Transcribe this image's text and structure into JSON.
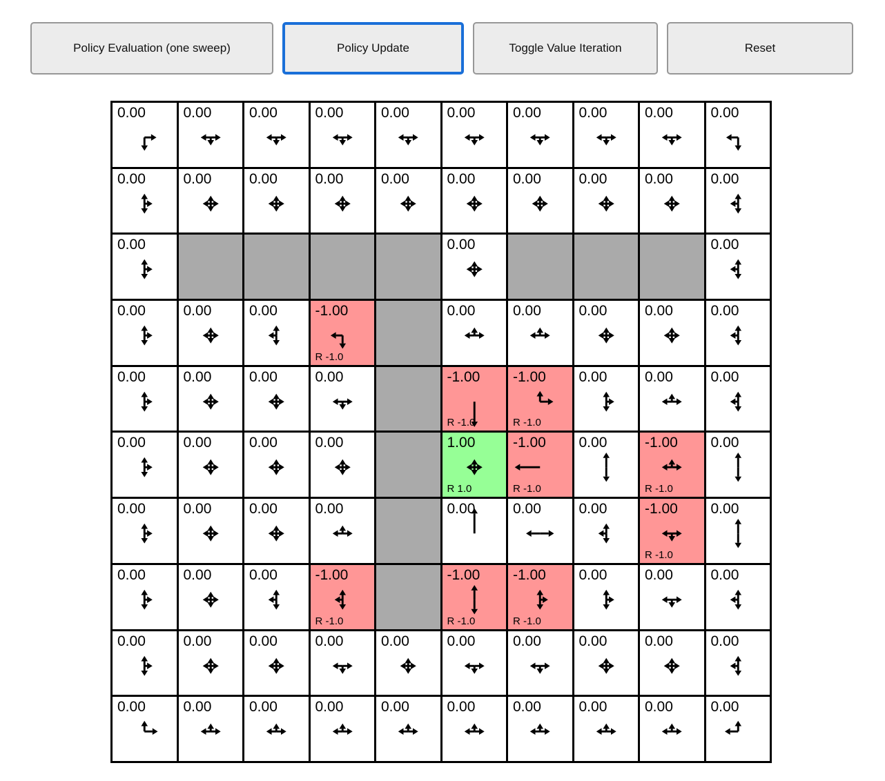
{
  "toolbar": {
    "buttons": [
      {
        "label": "Policy Evaluation (one sweep)"
      },
      {
        "label": "Policy Update"
      },
      {
        "label": "Toggle Value Iteration"
      },
      {
        "label": "Reset"
      }
    ],
    "active_index": 1,
    "active_border_color": "#1a6fd8"
  },
  "colors": {
    "cell": "#ffffff",
    "wall": "#aaaaaa",
    "negative": "#ff9696",
    "positive": "#96ff96",
    "grid_line": "#000000"
  },
  "grid": {
    "rows": 10,
    "cols": 10,
    "patterns": {
      "star": [
        [
          "u",
          4
        ],
        [
          "d",
          4
        ],
        [
          "l",
          4
        ],
        [
          "r",
          4
        ]
      ],
      "udr": [
        [
          "u",
          7
        ],
        [
          "d",
          7
        ],
        [
          "r",
          4
        ]
      ],
      "udl": [
        [
          "u",
          7
        ],
        [
          "d",
          7
        ],
        [
          "l",
          4
        ]
      ],
      "lrd": [
        [
          "l",
          7
        ],
        [
          "r",
          7
        ],
        [
          "d",
          4
        ]
      ],
      "lru": [
        [
          "l",
          7
        ],
        [
          "r",
          7
        ],
        [
          "u",
          4
        ]
      ],
      "rd": [
        [
          "r",
          10
        ],
        [
          "d",
          12
        ]
      ],
      "ld": [
        [
          "l",
          10
        ],
        [
          "d",
          12
        ]
      ],
      "ur": [
        [
          "u",
          8
        ],
        [
          "r",
          12
        ]
      ],
      "ul": [
        [
          "u",
          8
        ],
        [
          "l",
          12
        ]
      ],
      "dlong": [
        [
          "d",
          30
        ]
      ],
      "llong": [
        [
          "l",
          30
        ]
      ],
      "ulong": [
        [
          "u",
          30
        ]
      ],
      "udlong": [
        [
          "u",
          14
        ],
        [
          "d",
          14
        ]
      ],
      "lrlong": [
        [
          "l",
          13
        ],
        [
          "r",
          13
        ]
      ]
    },
    "cells": [
      [
        [
          "0.00",
          "rd",
          "w",
          ""
        ],
        [
          "0.00",
          "lrd",
          "w",
          ""
        ],
        [
          "0.00",
          "lrd",
          "w",
          ""
        ],
        [
          "0.00",
          "lrd",
          "w",
          ""
        ],
        [
          "0.00",
          "lrd",
          "w",
          ""
        ],
        [
          "0.00",
          "lrd",
          "w",
          ""
        ],
        [
          "0.00",
          "lrd",
          "w",
          ""
        ],
        [
          "0.00",
          "lrd",
          "w",
          ""
        ],
        [
          "0.00",
          "lrd",
          "w",
          ""
        ],
        [
          "0.00",
          "ld",
          "w",
          ""
        ]
      ],
      [
        [
          "0.00",
          "udr",
          "w",
          ""
        ],
        [
          "0.00",
          "star",
          "w",
          ""
        ],
        [
          "0.00",
          "star",
          "w",
          ""
        ],
        [
          "0.00",
          "star",
          "w",
          ""
        ],
        [
          "0.00",
          "star",
          "w",
          ""
        ],
        [
          "0.00",
          "star",
          "w",
          ""
        ],
        [
          "0.00",
          "star",
          "w",
          ""
        ],
        [
          "0.00",
          "star",
          "w",
          ""
        ],
        [
          "0.00",
          "star",
          "w",
          ""
        ],
        [
          "0.00",
          "udl",
          "w",
          ""
        ]
      ],
      [
        [
          "0.00",
          "udr",
          "w",
          ""
        ],
        [
          "",
          "",
          "g",
          ""
        ],
        [
          "",
          "",
          "g",
          ""
        ],
        [
          "",
          "",
          "g",
          ""
        ],
        [
          "",
          "",
          "g",
          ""
        ],
        [
          "0.00",
          "star",
          "w",
          ""
        ],
        [
          "",
          "",
          "g",
          ""
        ],
        [
          "",
          "",
          "g",
          ""
        ],
        [
          "",
          "",
          "g",
          ""
        ],
        [
          "0.00",
          "udl",
          "w",
          ""
        ]
      ],
      [
        [
          "0.00",
          "udr",
          "w",
          ""
        ],
        [
          "0.00",
          "star",
          "w",
          ""
        ],
        [
          "0.00",
          "udl",
          "w",
          ""
        ],
        [
          "-1.00",
          "ld",
          "r",
          "R -1.0"
        ],
        [
          "",
          "",
          "g",
          ""
        ],
        [
          "0.00",
          "lru",
          "w",
          ""
        ],
        [
          "0.00",
          "lru",
          "w",
          ""
        ],
        [
          "0.00",
          "star",
          "w",
          ""
        ],
        [
          "0.00",
          "star",
          "w",
          ""
        ],
        [
          "0.00",
          "udl",
          "w",
          ""
        ]
      ],
      [
        [
          "0.00",
          "udr",
          "w",
          ""
        ],
        [
          "0.00",
          "star",
          "w",
          ""
        ],
        [
          "0.00",
          "star",
          "w",
          ""
        ],
        [
          "0.00",
          "lrd",
          "w",
          ""
        ],
        [
          "",
          "",
          "g",
          ""
        ],
        [
          "-1.00",
          "dlong",
          "r",
          "R -1.0"
        ],
        [
          "-1.00",
          "ur",
          "r",
          "R -1.0"
        ],
        [
          "0.00",
          "udr",
          "w",
          ""
        ],
        [
          "0.00",
          "lru",
          "w",
          ""
        ],
        [
          "0.00",
          "udl",
          "w",
          ""
        ]
      ],
      [
        [
          "0.00",
          "udr",
          "w",
          ""
        ],
        [
          "0.00",
          "star",
          "w",
          ""
        ],
        [
          "0.00",
          "star",
          "w",
          ""
        ],
        [
          "0.00",
          "star",
          "w",
          ""
        ],
        [
          "",
          "",
          "g",
          ""
        ],
        [
          "1.00",
          "star",
          "p",
          "R 1.0"
        ],
        [
          "-1.00",
          "llong",
          "r",
          "R -1.0"
        ],
        [
          "0.00",
          "udlong",
          "w",
          ""
        ],
        [
          "-1.00",
          "lru",
          "r",
          "R -1.0"
        ],
        [
          "0.00",
          "udlong",
          "w",
          ""
        ]
      ],
      [
        [
          "0.00",
          "udr",
          "w",
          ""
        ],
        [
          "0.00",
          "star",
          "w",
          ""
        ],
        [
          "0.00",
          "star",
          "w",
          ""
        ],
        [
          "0.00",
          "lru",
          "w",
          ""
        ],
        [
          "",
          "",
          "g",
          ""
        ],
        [
          "0.00",
          "ulong",
          "w",
          ""
        ],
        [
          "0.00",
          "lrlong",
          "w",
          ""
        ],
        [
          "0.00",
          "udl",
          "w",
          ""
        ],
        [
          "-1.00",
          "lrd",
          "r",
          "R -1.0"
        ],
        [
          "0.00",
          "udlong",
          "w",
          ""
        ]
      ],
      [
        [
          "0.00",
          "udr",
          "w",
          ""
        ],
        [
          "0.00",
          "star",
          "w",
          ""
        ],
        [
          "0.00",
          "udl",
          "w",
          ""
        ],
        [
          "-1.00",
          "udl",
          "r",
          "R -1.0"
        ],
        [
          "",
          "",
          "g",
          ""
        ],
        [
          "-1.00",
          "udlong",
          "r",
          "R -1.0"
        ],
        [
          "-1.00",
          "udr",
          "r",
          "R -1.0"
        ],
        [
          "0.00",
          "udr",
          "w",
          ""
        ],
        [
          "0.00",
          "lrd",
          "w",
          ""
        ],
        [
          "0.00",
          "udl",
          "w",
          ""
        ]
      ],
      [
        [
          "0.00",
          "udr",
          "w",
          ""
        ],
        [
          "0.00",
          "star",
          "w",
          ""
        ],
        [
          "0.00",
          "star",
          "w",
          ""
        ],
        [
          "0.00",
          "lrd",
          "w",
          ""
        ],
        [
          "0.00",
          "star",
          "w",
          ""
        ],
        [
          "0.00",
          "lrd",
          "w",
          ""
        ],
        [
          "0.00",
          "lrd",
          "w",
          ""
        ],
        [
          "0.00",
          "star",
          "w",
          ""
        ],
        [
          "0.00",
          "star",
          "w",
          ""
        ],
        [
          "0.00",
          "udl",
          "w",
          ""
        ]
      ],
      [
        [
          "0.00",
          "ur",
          "w",
          ""
        ],
        [
          "0.00",
          "lru",
          "w",
          ""
        ],
        [
          "0.00",
          "lru",
          "w",
          ""
        ],
        [
          "0.00",
          "lru",
          "w",
          ""
        ],
        [
          "0.00",
          "lru",
          "w",
          ""
        ],
        [
          "0.00",
          "lru",
          "w",
          ""
        ],
        [
          "0.00",
          "lru",
          "w",
          ""
        ],
        [
          "0.00",
          "lru",
          "w",
          ""
        ],
        [
          "0.00",
          "lru",
          "w",
          ""
        ],
        [
          "0.00",
          "ul",
          "w",
          ""
        ]
      ]
    ]
  }
}
